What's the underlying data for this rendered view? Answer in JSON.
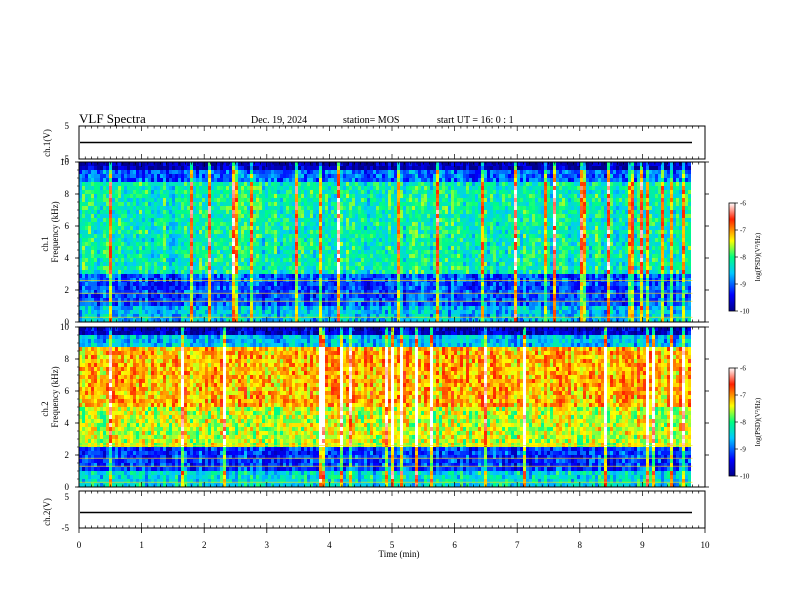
{
  "header": {
    "title": "VLF Spectra",
    "date": "Dec. 19, 2024",
    "station": "station= MOS",
    "start": "start  UT  =   16: 0  : 1"
  },
  "chart_data": [
    {
      "type": "line",
      "ylabel": "ch.1(V)",
      "ylim": [
        -5,
        5
      ],
      "yticks": [
        "5",
        "-5"
      ],
      "xlim": [
        0,
        10
      ],
      "series": [
        {
          "x": [
            0.2,
            9.8
          ],
          "y": [
            0,
            0
          ]
        }
      ]
    },
    {
      "type": "heatmap",
      "ylabel_top": "ch.1",
      "ylabel": "Frequency (kHz)",
      "xlim": [
        0,
        10
      ],
      "ylim": [
        0,
        10
      ],
      "yticks": [
        "0",
        "2",
        "4",
        "6",
        "8",
        "10"
      ],
      "data_xrange": [
        0,
        9.8
      ],
      "colorbar": {
        "label": "log(PSD)(V²/Hz)",
        "range": [
          -10,
          -6
        ],
        "ticks": [
          "-6",
          "-7",
          "-8",
          "-9",
          "-10"
        ]
      }
    },
    {
      "type": "heatmap",
      "ylabel_top": "ch.2",
      "ylabel": "Frequency (kHz)",
      "xlim": [
        0,
        10
      ],
      "ylim": [
        0,
        10
      ],
      "yticks": [
        "0",
        "2",
        "4",
        "6",
        "8",
        "10"
      ],
      "data_xrange": [
        0,
        9.8
      ],
      "colorbar": {
        "label": "log(PSD)(V²/Hz)",
        "range": [
          -10,
          -6
        ],
        "ticks": [
          "-6",
          "-7",
          "-8",
          "-9",
          "-10"
        ]
      }
    },
    {
      "type": "line",
      "ylabel": "ch.2(V)",
      "ylim": [
        -5,
        5
      ],
      "yticks": [
        "5",
        "-5"
      ],
      "xlim": [
        0,
        10
      ],
      "xlabel": "Time (min)",
      "xticks": [
        "0",
        "1",
        "2",
        "3",
        "4",
        "5",
        "6",
        "7",
        "8",
        "9",
        "10"
      ],
      "series": [
        {
          "x": [
            0.2,
            9.8
          ],
          "y": [
            0,
            0
          ]
        }
      ]
    }
  ],
  "colors": {
    "colormap": [
      "#00008b",
      "#0000ff",
      "#00c8ff",
      "#00ff80",
      "#ffff00",
      "#ff2000",
      "#ffffff"
    ]
  }
}
